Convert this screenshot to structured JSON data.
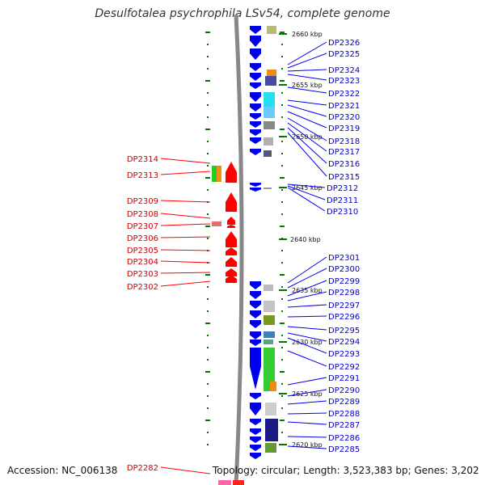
{
  "title": "Desulfotalea psychrophila LSv54, complete genome",
  "accession": "Accession: NC_006138",
  "topology": "Topology: circular; Length: 3,523,383 bp; Genes: 3,202",
  "colors": {
    "forward": "#ff0000",
    "reverse": "#0000ee",
    "tick": "#007700",
    "backbone": "#888888"
  },
  "scale_labels": [
    "2660 kbp",
    "2655 kbp",
    "2650 kbp",
    "2645 kbp",
    "2640 kbp",
    "2635 kbp",
    "2630 kbp",
    "2625 kbp",
    "2620 kbp"
  ],
  "left_genes": [
    "DP2314",
    "DP2313",
    "DP2309",
    "DP2308",
    "DP2307",
    "DP2306",
    "DP2305",
    "DP2304",
    "DP2303",
    "DP2302",
    "DP2282"
  ],
  "right_genes": [
    "DP2326",
    "DP2325",
    "DP2324",
    "DP2323",
    "DP2322",
    "DP2321",
    "DP2320",
    "DP2319",
    "DP2318",
    "DP2317",
    "DP2316",
    "DP2315",
    "DP2312",
    "DP2311",
    "DP2310",
    "DP2301",
    "DP2300",
    "DP2299",
    "DP2298",
    "DP2297",
    "DP2296",
    "DP2295",
    "DP2294",
    "DP2293",
    "DP2292",
    "DP2291",
    "DP2290",
    "DP2289",
    "DP2288",
    "DP2287",
    "DP2286",
    "DP2285"
  ]
}
